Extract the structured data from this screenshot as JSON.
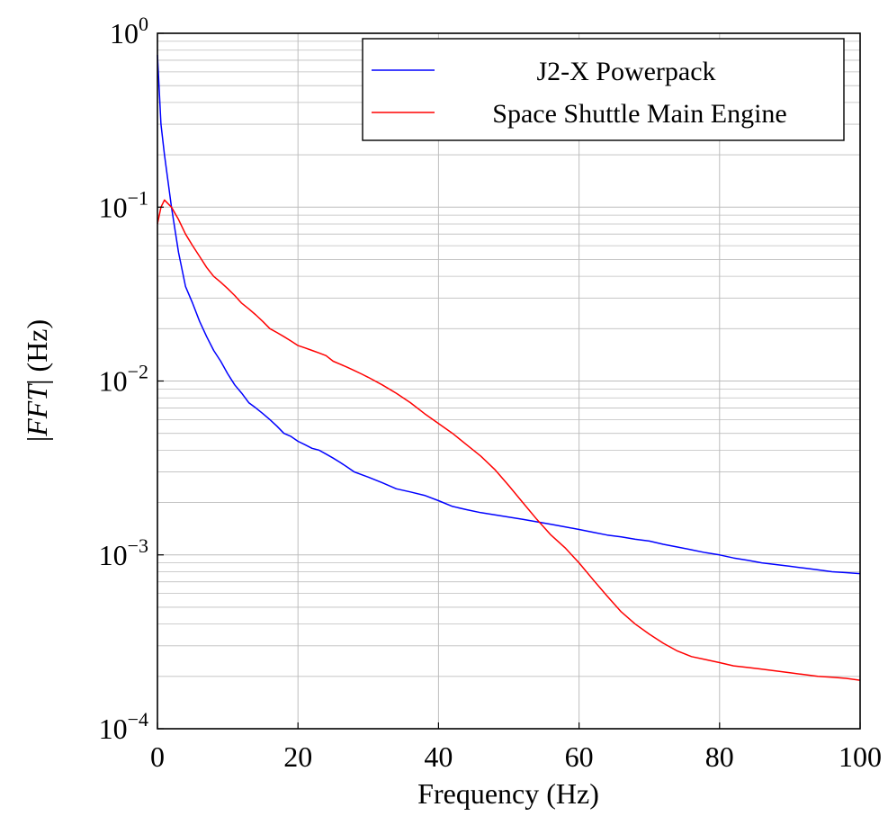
{
  "chart_data": {
    "type": "line",
    "xlabel": "Frequency (Hz)",
    "ylabel_parts": [
      "|",
      "FFT",
      "| (Hz)"
    ],
    "xlim": [
      0,
      100
    ],
    "ylim": [
      0.0001,
      1
    ],
    "yscale": "log",
    "grid": true,
    "legend_position": "top-right",
    "x_ticks": [
      {
        "value": 0,
        "label": "0"
      },
      {
        "value": 20,
        "label": "20"
      },
      {
        "value": 40,
        "label": "40"
      },
      {
        "value": 60,
        "label": "60"
      },
      {
        "value": 80,
        "label": "80"
      },
      {
        "value": 100,
        "label": "100"
      }
    ],
    "y_ticks": [
      {
        "value": 1,
        "base": "10",
        "exp": "0"
      },
      {
        "value": 0.1,
        "base": "10",
        "exp": "−1"
      },
      {
        "value": 0.01,
        "base": "10",
        "exp": "−2"
      },
      {
        "value": 0.001,
        "base": "10",
        "exp": "−3"
      },
      {
        "value": 0.0001,
        "base": "10",
        "exp": "−4"
      }
    ],
    "series": [
      {
        "name": "J2-X Powerpack",
        "color": "#0000ff",
        "x": [
          0,
          0.5,
          1,
          2,
          3,
          4,
          5,
          6,
          7,
          8,
          9,
          10,
          11,
          12,
          13,
          14,
          15,
          16,
          17,
          18,
          19,
          20,
          21,
          22,
          23,
          24,
          25,
          26,
          27,
          28,
          29,
          30,
          32,
          34,
          36,
          38,
          40,
          42,
          44,
          46,
          48,
          50,
          52,
          54,
          56,
          58,
          60,
          62,
          64,
          66,
          68,
          70,
          72,
          74,
          76,
          78,
          80,
          82,
          84,
          86,
          88,
          90,
          92,
          94,
          96,
          98,
          100
        ],
        "y": [
          0.75,
          0.3,
          0.2,
          0.1,
          0.055,
          0.035,
          0.028,
          0.022,
          0.018,
          0.015,
          0.013,
          0.011,
          0.0095,
          0.0085,
          0.0075,
          0.007,
          0.0065,
          0.006,
          0.0055,
          0.005,
          0.0048,
          0.0045,
          0.0043,
          0.0041,
          0.004,
          0.0038,
          0.0036,
          0.0034,
          0.0032,
          0.003,
          0.0029,
          0.0028,
          0.0026,
          0.0024,
          0.0023,
          0.0022,
          0.00205,
          0.0019,
          0.00182,
          0.00175,
          0.0017,
          0.00165,
          0.0016,
          0.00155,
          0.0015,
          0.00145,
          0.0014,
          0.00135,
          0.0013,
          0.00127,
          0.00123,
          0.0012,
          0.00115,
          0.00111,
          0.00107,
          0.00103,
          0.001,
          0.00096,
          0.00093,
          0.0009,
          0.00088,
          0.00086,
          0.00084,
          0.00082,
          0.0008,
          0.00079,
          0.00078
        ]
      },
      {
        "name": "Space Shuttle Main Engine",
        "color": "#ff0000",
        "x": [
          0,
          0.5,
          1,
          2,
          3,
          4,
          5,
          6,
          7,
          8,
          9,
          10,
          11,
          12,
          13,
          14,
          15,
          16,
          17,
          18,
          19,
          20,
          21,
          22,
          23,
          24,
          25,
          26,
          27,
          28,
          29,
          30,
          32,
          34,
          36,
          38,
          40,
          42,
          44,
          46,
          48,
          50,
          52,
          54,
          56,
          58,
          60,
          62,
          64,
          66,
          68,
          70,
          72,
          74,
          76,
          78,
          80,
          82,
          84,
          86,
          88,
          90,
          92,
          94,
          96,
          98,
          100
        ],
        "y": [
          0.08,
          0.1,
          0.11,
          0.1,
          0.085,
          0.07,
          0.06,
          0.052,
          0.045,
          0.04,
          0.037,
          0.034,
          0.031,
          0.028,
          0.026,
          0.024,
          0.022,
          0.02,
          0.019,
          0.018,
          0.017,
          0.016,
          0.0155,
          0.015,
          0.0145,
          0.014,
          0.013,
          0.0125,
          0.012,
          0.0115,
          0.011,
          0.0105,
          0.0095,
          0.0085,
          0.0075,
          0.0065,
          0.0057,
          0.005,
          0.0043,
          0.0037,
          0.0031,
          0.0025,
          0.002,
          0.0016,
          0.0013,
          0.0011,
          0.0009,
          0.00072,
          0.00058,
          0.00047,
          0.0004,
          0.00035,
          0.00031,
          0.00028,
          0.00026,
          0.00025,
          0.00024,
          0.00023,
          0.000225,
          0.00022,
          0.000215,
          0.00021,
          0.000205,
          0.0002,
          0.000198,
          0.000195,
          0.00019
        ]
      }
    ]
  }
}
